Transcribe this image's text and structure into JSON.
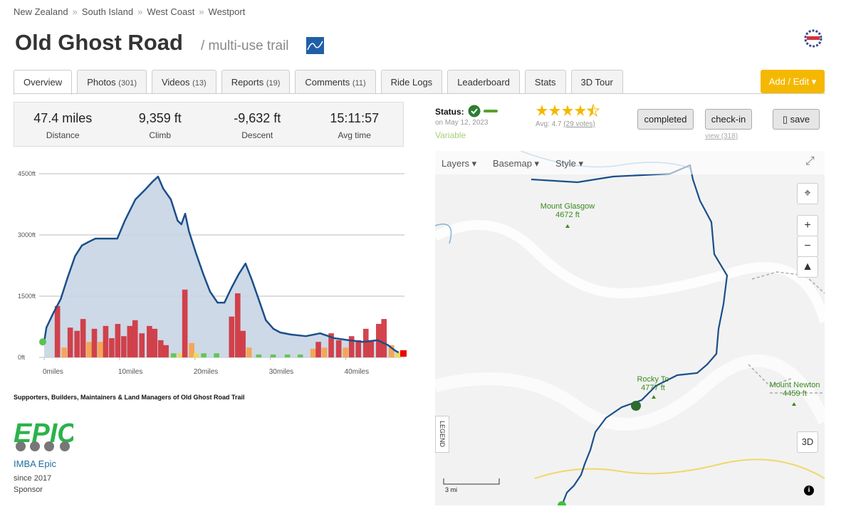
{
  "breadcrumb": {
    "items": [
      "New Zealand",
      "South Island",
      "West Coast",
      "Westport"
    ],
    "separator": "»"
  },
  "header": {
    "title": "Old Ghost Road",
    "subtitle": "/ multi-use trail"
  },
  "tabs": [
    {
      "label": "Overview"
    },
    {
      "label": "Photos",
      "count": "(301)"
    },
    {
      "label": "Videos",
      "count": "(13)"
    },
    {
      "label": "Reports",
      "count": "(19)"
    },
    {
      "label": "Comments",
      "count": "(11)"
    },
    {
      "label": "Ride Logs"
    },
    {
      "label": "Leaderboard"
    },
    {
      "label": "Stats"
    },
    {
      "label": "3D Tour"
    }
  ],
  "add_edit": "Add / Edit",
  "stats": [
    {
      "value": "47.4 miles",
      "label": "Distance"
    },
    {
      "value": "9,359 ft",
      "label": "Climb"
    },
    {
      "value": "-9,632 ft",
      "label": "Descent"
    },
    {
      "value": "15:11:57",
      "label": "Avg time"
    }
  ],
  "status": {
    "label": "Status:",
    "date": "on May 12, 2023",
    "condition": "Variable"
  },
  "rating": {
    "avg": "Avg: 4.7",
    "votes": "(29 votes)"
  },
  "actions": {
    "completed": "completed",
    "checkin": "check-in",
    "views": "view (318)",
    "save": "save"
  },
  "map": {
    "controls": [
      "Layers",
      "Basemap",
      "Style"
    ],
    "legend": "LEGEND",
    "three_d": "3D",
    "scale": "3 mi",
    "peaks": [
      {
        "name": "Mount Glasgow",
        "elevation": "4672 ft"
      },
      {
        "name": "Rocky To",
        "elevation": "4777 ft"
      },
      {
        "name": "Mount Newton",
        "elevation": "4459 ft"
      }
    ]
  },
  "chart_data": {
    "type": "area",
    "x": [
      0,
      0.3,
      1.2,
      2.2,
      3.1,
      4.1,
      5.0,
      5.9,
      6.8,
      8.3,
      9.7,
      10.7,
      12.1,
      13.5,
      14.4,
      15.1,
      15.8,
      16.8,
      17.7,
      18.2,
      18.7,
      19.2,
      20.1,
      21.1,
      22.0,
      23.0,
      23.9,
      24.8,
      25.8,
      26.7,
      27.6,
      28.6,
      29.4,
      30.4,
      31.3,
      32.7,
      34.7,
      36.6,
      38.5,
      40.4,
      42.3,
      44.2,
      45.6,
      46.5,
      47.0
    ],
    "series": [
      {
        "color": "#1a4f8a",
        "fill": "#c8d5e4",
        "values": [
          380,
          730,
          1080,
          1430,
          1950,
          2480,
          2740,
          2830,
          2910,
          2910,
          2910,
          3350,
          3870,
          4130,
          4310,
          4430,
          4130,
          3870,
          3350,
          3260,
          3520,
          3090,
          2570,
          2040,
          1610,
          1340,
          1340,
          1690,
          2040,
          2300,
          1870,
          1340,
          910,
          700,
          610,
          560,
          520,
          590,
          470,
          420,
          380,
          420,
          300,
          170,
          120
        ]
      }
    ],
    "bars": {
      "x": [
        1.4,
        2.3,
        3.1,
        4.0,
        4.8,
        5.6,
        6.3,
        7.1,
        7.8,
        8.6,
        9.4,
        10.2,
        11.0,
        11.7,
        12.6,
        13.6,
        14.3,
        15.1,
        15.8,
        16.8,
        17.7,
        18.3,
        19.2,
        19.8,
        20.8,
        22.5,
        24.5,
        25.3,
        26.0,
        26.8,
        28.1,
        30.0,
        31.9,
        33.6,
        35.3,
        36.0,
        36.8,
        37.7,
        38.7,
        39.6,
        40.4,
        41.3,
        42.3,
        43.0,
        44.0,
        44.7,
        45.7,
        46.6
      ],
      "values": [
        1260,
        240,
        730,
        650,
        940,
        380,
        700,
        380,
        770,
        470,
        820,
        520,
        770,
        910,
        590,
        770,
        700,
        420,
        300,
        100,
        100,
        1660,
        350,
        100,
        100,
        100,
        1000,
        1570,
        650,
        240,
        70,
        70,
        70,
        70,
        210,
        380,
        240,
        590,
        420,
        240,
        520,
        420,
        700,
        420,
        820,
        940,
        300,
        120
      ],
      "colors": [
        "#d0343e",
        "#f7a24a",
        "#d0343e",
        "#d0343e",
        "#d0343e",
        "#f7a24a",
        "#d0343e",
        "#f7a24a",
        "#d0343e",
        "#d0343e",
        "#d0343e",
        "#d0343e",
        "#d0343e",
        "#d0343e",
        "#d0343e",
        "#d0343e",
        "#d0343e",
        "#d0343e",
        "#d0343e",
        "#5bc34d",
        "#f2d84a",
        "#d0343e",
        "#f7a24a",
        "#f2d84a",
        "#5bc34d",
        "#5bc34d",
        "#d0343e",
        "#d0343e",
        "#d0343e",
        "#f7a24a",
        "#5bc34d",
        "#5bc34d",
        "#5bc34d",
        "#5bc34d",
        "#f7a24a",
        "#d0343e",
        "#f7a24a",
        "#d0343e",
        "#d0343e",
        "#f7a24a",
        "#d0343e",
        "#d0343e",
        "#d0343e",
        "#d0343e",
        "#d0343e",
        "#d0343e",
        "#f7a24a",
        "#f2d84a"
      ]
    },
    "xlim": [
      0,
      47.4
    ],
    "ylim": [
      0,
      4500
    ],
    "xticks": [
      {
        "value": 0,
        "label": "0miles"
      },
      {
        "value": 10,
        "label": "10miles"
      },
      {
        "value": 20,
        "label": "20miles"
      },
      {
        "value": 30,
        "label": "30miles"
      },
      {
        "value": 40,
        "label": "40miles"
      }
    ],
    "yticks": [
      {
        "value": 0,
        "label": "0ft"
      },
      {
        "value": 1500,
        "label": "1500ft"
      },
      {
        "value": 3000,
        "label": "3000ft"
      },
      {
        "value": 4500,
        "label": "4500ft"
      }
    ],
    "grid": true
  },
  "supporters": {
    "heading": "Supporters, Builders, Maintainers & Land Managers of Old Ghost Road Trail",
    "logo": "EPIC",
    "name": "IMBA Epic",
    "since": "since 2017",
    "role": "Sponsor"
  }
}
